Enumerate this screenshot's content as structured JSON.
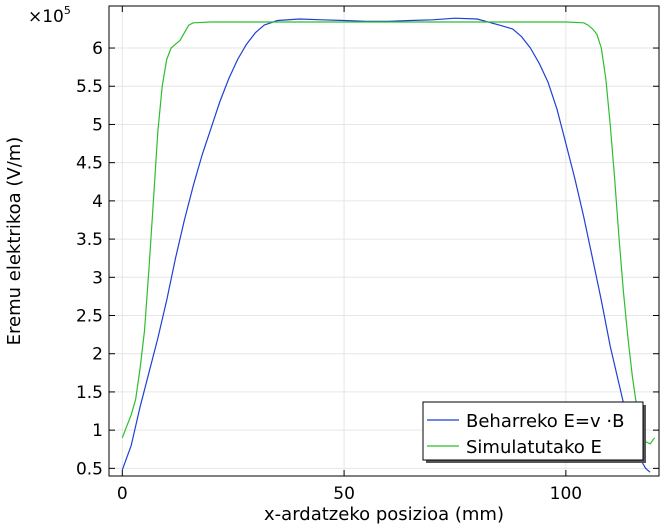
{
  "chart_data": {
    "type": "line",
    "xlabel": "x-ardatzeko posizioa (mm)",
    "ylabel": "Eremu elektrikoa (V/m)",
    "y_multiplier": "×10",
    "y_multiplier_exp": "5",
    "xlim": [
      -3,
      121
    ],
    "ylim": [
      0.4,
      6.55
    ],
    "x_ticks": [
      0,
      50,
      100
    ],
    "x_tick_labels": [
      "0",
      "50",
      "100"
    ],
    "y_ticks": [
      0.5,
      1,
      1.5,
      2,
      2.5,
      3,
      3.5,
      4,
      4.5,
      5,
      5.5,
      6
    ],
    "y_tick_labels": [
      "0.5",
      "1",
      "1.5",
      "2",
      "2.5",
      "3",
      "3.5",
      "4",
      "4.5",
      "5",
      "5.5",
      "6"
    ],
    "grid": true,
    "legend_position": "bottom-right",
    "series": [
      {
        "name": "Beharreko E=v ·B",
        "color": "#1f3fd6",
        "x": [
          0,
          2,
          4,
          6,
          8,
          10,
          12,
          14,
          16,
          18,
          20,
          22,
          24,
          26,
          28,
          30,
          32,
          35,
          40,
          45,
          50,
          55,
          60,
          65,
          70,
          75,
          80,
          85,
          88,
          90,
          92,
          94,
          96,
          98,
          100,
          102,
          104,
          106,
          108,
          110,
          112,
          114,
          116,
          118,
          119
        ],
        "y": [
          0.48,
          0.8,
          1.3,
          1.75,
          2.2,
          2.7,
          3.25,
          3.75,
          4.2,
          4.6,
          4.95,
          5.3,
          5.6,
          5.85,
          6.05,
          6.2,
          6.3,
          6.36,
          6.38,
          6.37,
          6.36,
          6.35,
          6.35,
          6.36,
          6.37,
          6.39,
          6.38,
          6.3,
          6.25,
          6.15,
          6.0,
          5.8,
          5.55,
          5.2,
          4.75,
          4.3,
          3.8,
          3.25,
          2.7,
          2.1,
          1.6,
          1.1,
          0.7,
          0.5,
          0.45
        ]
      },
      {
        "name": "Simulatutako E",
        "color": "#2cbf2c",
        "x": [
          0,
          1,
          2,
          3,
          4,
          5,
          6,
          7,
          8,
          9,
          10,
          11,
          12,
          13,
          14,
          15,
          16,
          20,
          30,
          40,
          50,
          60,
          70,
          80,
          90,
          100,
          104,
          105,
          106,
          107,
          108,
          109,
          110,
          111,
          112,
          113,
          114,
          115,
          116,
          117,
          118,
          119,
          120
        ],
        "y": [
          0.9,
          1.05,
          1.2,
          1.4,
          1.8,
          2.3,
          3.1,
          4.0,
          4.9,
          5.5,
          5.85,
          6.0,
          6.05,
          6.1,
          6.2,
          6.3,
          6.33,
          6.34,
          6.34,
          6.34,
          6.34,
          6.34,
          6.34,
          6.34,
          6.34,
          6.34,
          6.33,
          6.3,
          6.25,
          6.18,
          6.0,
          5.6,
          5.0,
          4.3,
          3.5,
          2.8,
          2.2,
          1.7,
          1.3,
          1.0,
          0.85,
          0.82,
          0.9
        ]
      }
    ]
  }
}
